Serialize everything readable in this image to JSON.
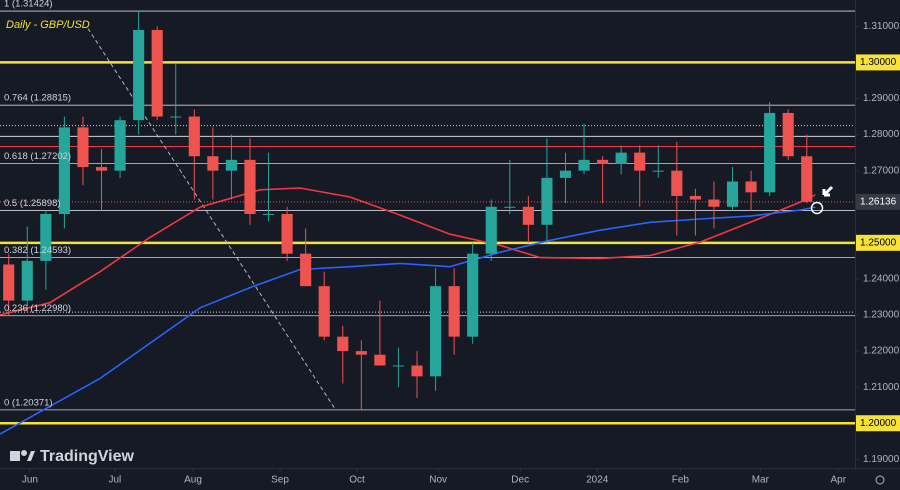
{
  "chart_data": {
    "type": "candlestick",
    "title": "Daily - GBP/USD",
    "watermark": "TradingView",
    "x": [
      0,
      1,
      2,
      3,
      4,
      5,
      6,
      7,
      8,
      9,
      10,
      11,
      12,
      13,
      14,
      15,
      16,
      17,
      18,
      19,
      20,
      21,
      22,
      23,
      24,
      25,
      26,
      27,
      28,
      29,
      30,
      31,
      32,
      33,
      34,
      35,
      36,
      37,
      38,
      39,
      40,
      41,
      42,
      43
    ],
    "open": [
      1.244,
      1.234,
      1.245,
      1.258,
      1.282,
      1.271,
      1.27,
      1.284,
      1.309,
      1.285,
      1.285,
      1.274,
      1.27,
      1.273,
      1.258,
      1.258,
      1.247,
      1.238,
      1.224,
      1.22,
      1.219,
      1.216,
      1.216,
      1.213,
      1.238,
      1.224,
      1.247,
      1.26,
      1.26,
      1.255,
      1.268,
      1.27,
      1.273,
      1.272,
      1.275,
      1.27,
      1.27,
      1.263,
      1.262,
      1.26,
      1.267,
      1.264,
      1.286,
      1.274
    ],
    "high": [
      1.247,
      1.2545,
      1.259,
      1.285,
      1.285,
      1.276,
      1.285,
      1.31424,
      1.31,
      1.2995,
      1.287,
      1.282,
      1.28,
      1.279,
      1.275,
      1.26,
      1.254,
      1.242,
      1.227,
      1.223,
      1.234,
      1.221,
      1.22,
      1.243,
      1.243,
      1.25,
      1.262,
      1.273,
      1.263,
      1.279,
      1.275,
      1.283,
      1.274,
      1.277,
      1.277,
      1.277,
      1.278,
      1.265,
      1.267,
      1.271,
      1.27,
      1.289,
      1.287,
      1.28
    ],
    "low": [
      1.23,
      1.231,
      1.237,
      1.254,
      1.266,
      1.259,
      1.268,
      1.28,
      1.284,
      1.28,
      1.262,
      1.262,
      1.262,
      1.255,
      1.256,
      1.245,
      1.238,
      1.223,
      1.211,
      1.20371,
      1.217,
      1.21,
      1.207,
      1.209,
      1.219,
      1.222,
      1.245,
      1.258,
      1.25,
      1.25,
      1.261,
      1.269,
      1.261,
      1.269,
      1.26,
      1.268,
      1.252,
      1.252,
      1.254,
      1.259,
      1.259,
      1.263,
      1.273,
      1.261
    ],
    "close": [
      1.234,
      1.245,
      1.258,
      1.282,
      1.271,
      1.27,
      1.284,
      1.309,
      1.285,
      1.285,
      1.274,
      1.27,
      1.273,
      1.258,
      1.258,
      1.247,
      1.238,
      1.224,
      1.22,
      1.219,
      1.216,
      1.216,
      1.213,
      1.238,
      1.224,
      1.247,
      1.26,
      1.26,
      1.255,
      1.268,
      1.27,
      1.273,
      1.272,
      1.275,
      1.27,
      1.27,
      1.263,
      1.262,
      1.26,
      1.267,
      1.264,
      1.286,
      1.274,
      1.26136
    ],
    "up_color": "#26a69a",
    "down_color": "#ef5350",
    "moving_averages": [
      {
        "color": "#f23645",
        "x": [
          -0.47,
          2.22,
          4.92,
          7.61,
          10.31,
          13.54,
          15.7,
          18.39,
          21.09,
          23.78,
          26.48,
          28.64,
          31.87,
          34.57,
          37.26,
          39.96,
          42.65,
          43.46
        ],
        "values": [
          1.23,
          1.2334,
          1.242,
          1.2515,
          1.2599,
          1.2647,
          1.2652,
          1.2627,
          1.2577,
          1.2524,
          1.2493,
          1.2459,
          1.2457,
          1.2465,
          1.2502,
          1.2557,
          1.2613,
          1.2633
        ]
      },
      {
        "color": "#2962ff",
        "x": [
          -0.47,
          4.92,
          10.31,
          13.0,
          15.7,
          18.39,
          21.09,
          23.78,
          26.48,
          29.18,
          31.87,
          34.57,
          37.26,
          39.96,
          42.65,
          43.46
        ],
        "values": [
          1.197,
          1.2124,
          1.232,
          1.2376,
          1.2426,
          1.2434,
          1.2443,
          1.2434,
          1.2474,
          1.2507,
          1.2535,
          1.2557,
          1.2566,
          1.2574,
          1.2591,
          1.2599
        ]
      }
    ],
    "trendline": {
      "color": "#b2b5be",
      "x": [
        4.27,
        17.58
      ],
      "values": [
        1.3094,
        1.204
      ]
    },
    "fib_levels": [
      {
        "value": 1.31424,
        "label": "1 (1.31424)"
      },
      {
        "value": 1.28815,
        "label": "0.764 (1.28815)"
      },
      {
        "value": 1.27202,
        "label": "0.618 (1.27202)"
      },
      {
        "value": 1.25898,
        "label": "0.5 (1.25898)"
      },
      {
        "value": 1.24593,
        "label": "0.382 (1.24593)"
      },
      {
        "value": 1.2298,
        "label": "0.236 (1.22980)"
      },
      {
        "value": 1.20371,
        "label": "0 (1.20371)"
      }
    ],
    "key_levels": [
      {
        "value": 1.3,
        "label": "1.30000",
        "color": "#f7e23b"
      },
      {
        "value": 1.25,
        "label": "1.25000",
        "color": "#f7e23b"
      },
      {
        "value": 1.2,
        "label": "1.20000",
        "color": "#f7e23b"
      }
    ],
    "extra_lines": [
      {
        "value": 1.2767,
        "color": "#f23645",
        "dash": false
      },
      {
        "value": 1.2825,
        "color": "#d1d4dc",
        "dash": true
      },
      {
        "value": 1.2795,
        "color": "#d1d4dc",
        "dash": false
      },
      {
        "value": 1.2308,
        "color": "#d1d4dc",
        "dash": true
      }
    ],
    "last_price": {
      "value": 1.26136,
      "label": "1.26136"
    },
    "xlim": [
      -0.47,
      45.6
    ],
    "ylim": [
      1.1876,
      1.3173
    ],
    "xticks": [
      {
        "value": 1.14,
        "label": "Jun"
      },
      {
        "value": 5.72,
        "label": "Jul"
      },
      {
        "value": 9.93,
        "label": "Aug"
      },
      {
        "value": 14.62,
        "label": "Sep"
      },
      {
        "value": 18.77,
        "label": "Oct"
      },
      {
        "value": 23.14,
        "label": "Nov"
      },
      {
        "value": 27.56,
        "label": "Dec"
      },
      {
        "value": 31.71,
        "label": "2024"
      },
      {
        "value": 36.19,
        "label": "Feb"
      },
      {
        "value": 40.5,
        "label": "Mar"
      },
      {
        "value": 44.7,
        "label": "Apr"
      }
    ],
    "yticks": [
      {
        "value": 1.31,
        "label": "1.31000"
      },
      {
        "value": 1.29,
        "label": "1.29000"
      },
      {
        "value": 1.28,
        "label": "1.28000"
      },
      {
        "value": 1.27,
        "label": "1.27000"
      },
      {
        "value": 1.24,
        "label": "1.24000"
      },
      {
        "value": 1.23,
        "label": "1.23000"
      },
      {
        "value": 1.22,
        "label": "1.22000"
      },
      {
        "value": 1.21,
        "label": "1.21000"
      },
      {
        "value": 1.19,
        "label": "1.19000"
      }
    ]
  }
}
